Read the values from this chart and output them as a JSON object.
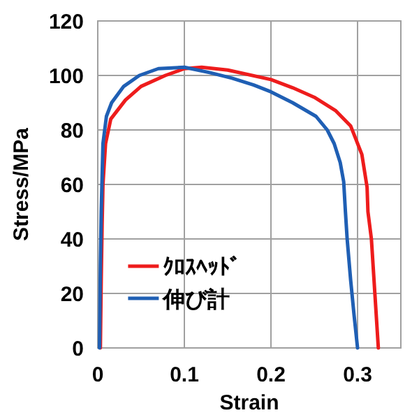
{
  "chart_data": {
    "type": "line",
    "xlabel": "Strain",
    "ylabel": "Stress/MPa",
    "xlim": [
      0,
      0.35
    ],
    "xticks": [
      0,
      0.1,
      0.2,
      0.3
    ],
    "ylim": [
      0,
      120
    ],
    "yticks": [
      0,
      20,
      40,
      60,
      80,
      100,
      120
    ],
    "grid": true,
    "legend": "bottom",
    "marker": "none",
    "line_style": "solid",
    "series": [
      {
        "name": "ｸﾛｽﾍｯﾄﾞ",
        "color": "#ee1c1c",
        "x": [
          0.003,
          0.004,
          0.005,
          0.006,
          0.009,
          0.015,
          0.032,
          0.05,
          0.078,
          0.1,
          0.12,
          0.15,
          0.2,
          0.225,
          0.25,
          0.275,
          0.292,
          0.305,
          0.311,
          0.312,
          0.316,
          0.32,
          0.324
        ],
        "values": [
          0,
          25,
          45,
          60,
          75,
          84,
          91,
          96,
          100,
          102.5,
          103,
          102,
          98.5,
          95.5,
          92,
          87,
          81.5,
          71,
          59,
          50,
          40,
          20,
          0
        ]
      },
      {
        "name": "伸び計",
        "color": "#1f5fb4",
        "x": [
          0.002,
          0.003,
          0.004,
          0.006,
          0.01,
          0.016,
          0.03,
          0.048,
          0.07,
          0.1,
          0.13,
          0.155,
          0.18,
          0.2,
          0.225,
          0.252,
          0.265,
          0.273,
          0.28,
          0.284,
          0.286,
          0.288,
          0.292,
          0.296,
          0.3
        ],
        "values": [
          0,
          30,
          50,
          75,
          85,
          90,
          96,
          100,
          102.5,
          103,
          101,
          99,
          96.5,
          94,
          90,
          85,
          80,
          75,
          68,
          61,
          50,
          40,
          25,
          12,
          0
        ]
      }
    ]
  }
}
